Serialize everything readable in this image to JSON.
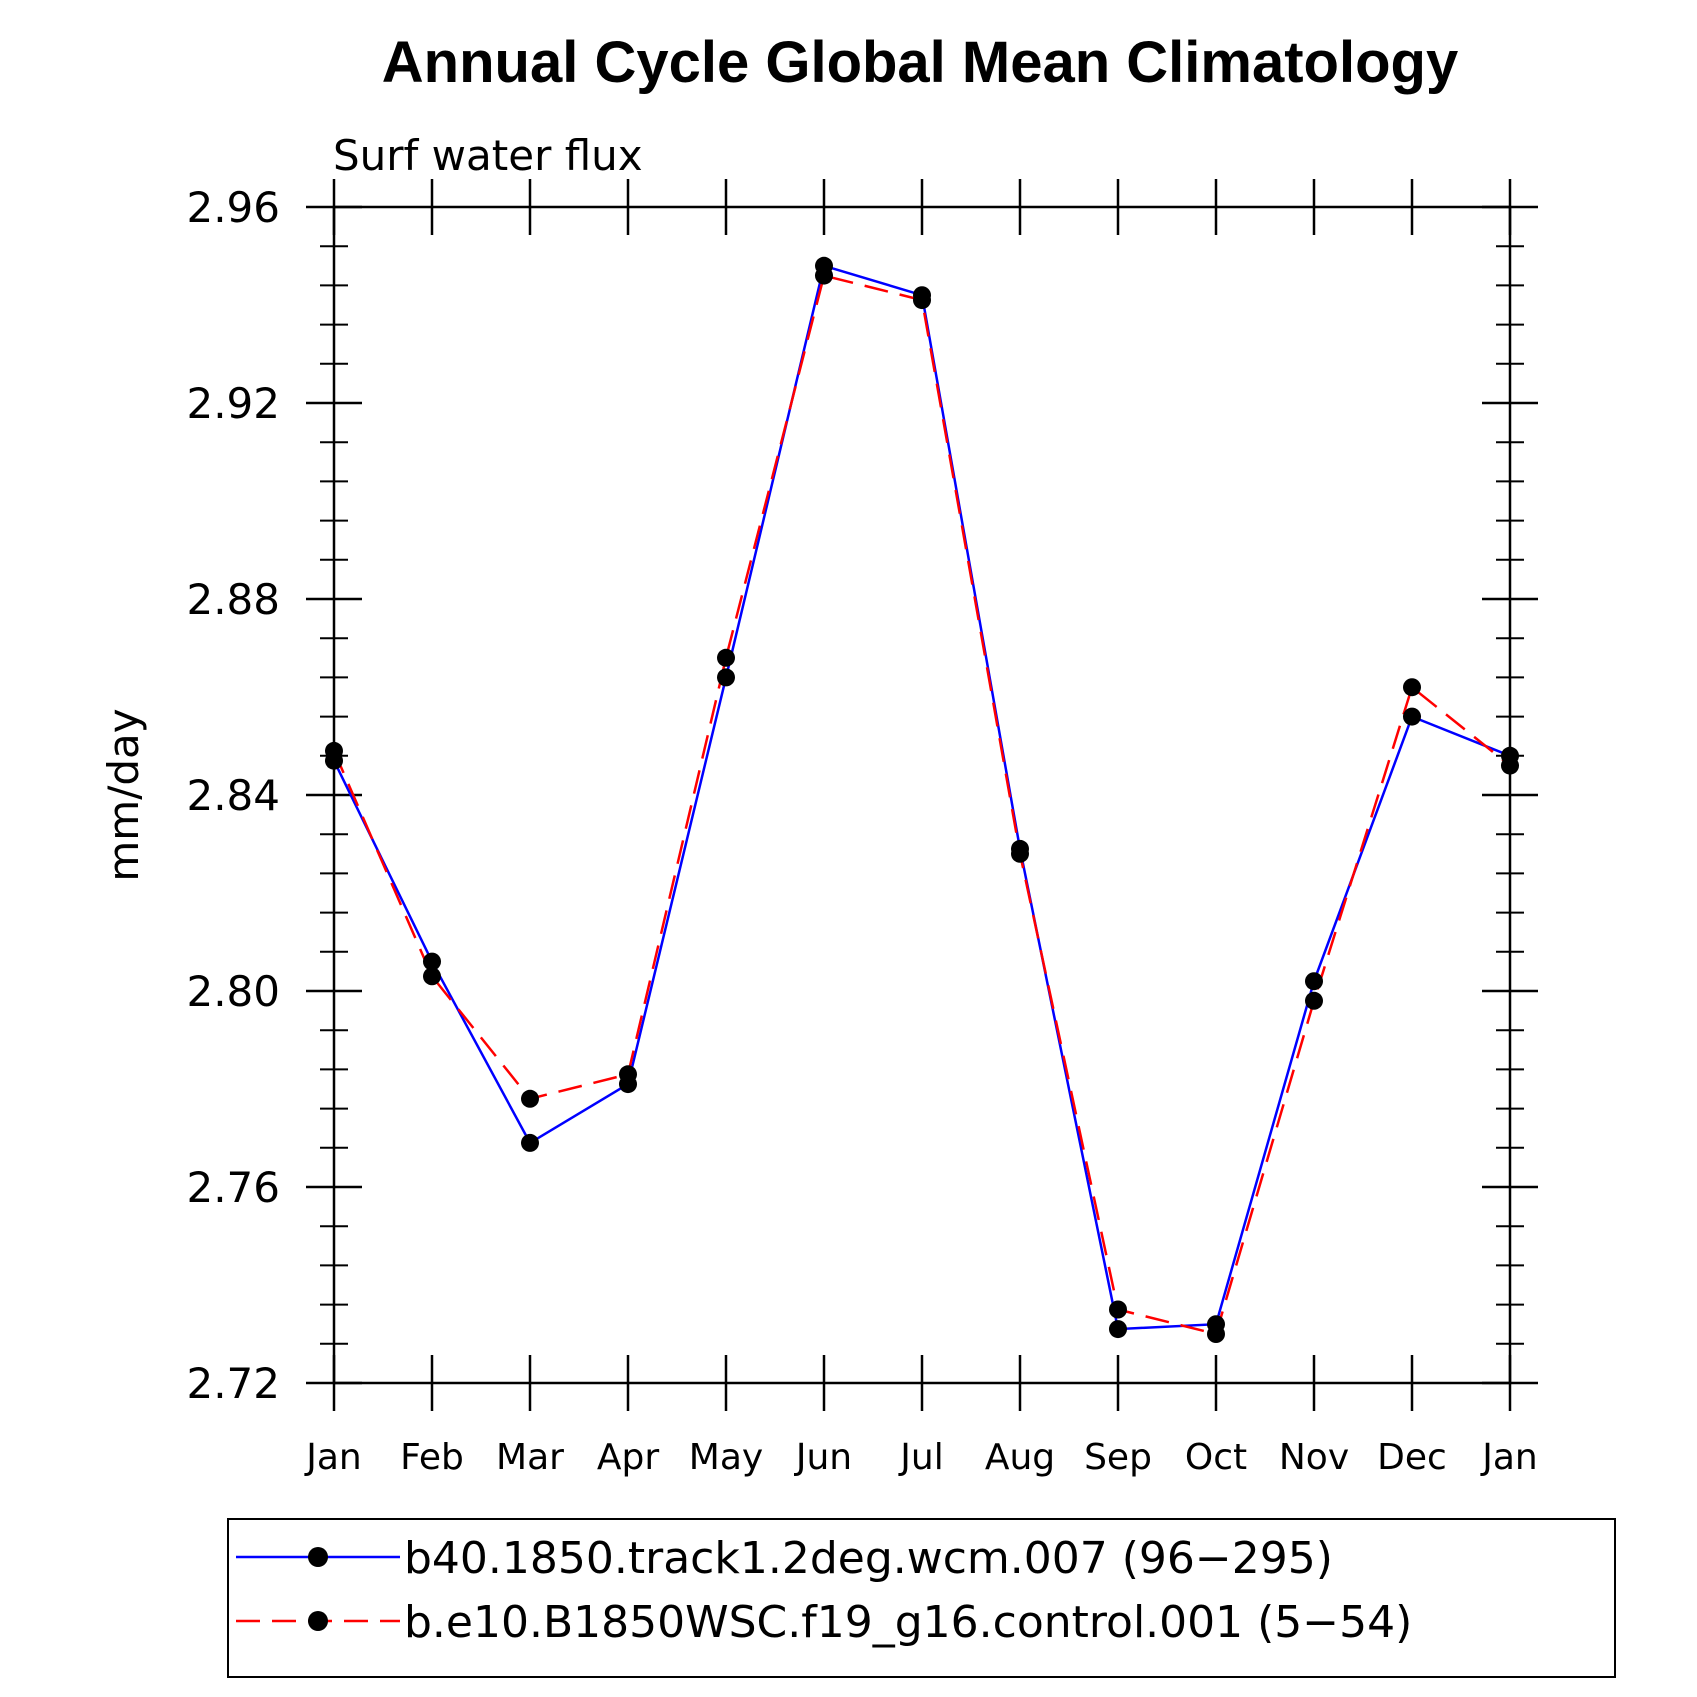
{
  "chart_data": {
    "type": "line",
    "title": "Annual Cycle Global Mean Climatology",
    "subtitle": "Surf water flux",
    "ylabel": "mm/day",
    "xlabel": "",
    "categories": [
      "Jan",
      "Feb",
      "Mar",
      "Apr",
      "May",
      "Jun",
      "Jul",
      "Aug",
      "Sep",
      "Oct",
      "Nov",
      "Dec",
      "Jan"
    ],
    "ylim": [
      2.72,
      2.96
    ],
    "yticks": [
      "2.72",
      "2.76",
      "2.80",
      "2.84",
      "2.88",
      "2.92",
      "2.96"
    ],
    "grid": false,
    "legend_position": "bottom",
    "series": [
      {
        "name": "b40.1850.track1.2deg.wcm.007 (96−295)",
        "color": "#0000ff",
        "style": "solid",
        "marker": "circle",
        "values": [
          2.847,
          2.806,
          2.769,
          2.781,
          2.864,
          2.948,
          2.942,
          2.829,
          2.731,
          2.732,
          2.802,
          2.856,
          2.848
        ]
      },
      {
        "name": "b.e10.B1850WSC.f19_g16.control.001 (5−54)",
        "color": "#ff0000",
        "style": "dashed",
        "marker": "circle",
        "values": [
          2.849,
          2.803,
          2.778,
          2.783,
          2.868,
          2.946,
          2.941,
          2.828,
          2.735,
          2.73,
          2.798,
          2.862,
          2.846
        ]
      }
    ]
  }
}
